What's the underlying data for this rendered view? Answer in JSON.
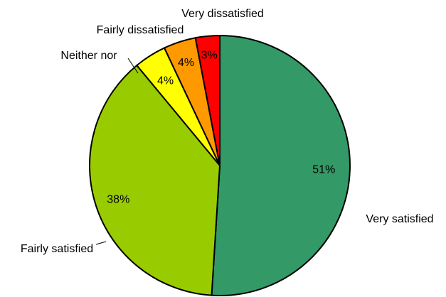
{
  "chart_data": {
    "type": "pie",
    "title": "",
    "slices": [
      {
        "label": "Very satisfied",
        "value": 51,
        "value_label": "51%",
        "color": "#339966"
      },
      {
        "label": "Fairly satisfied",
        "value": 38,
        "value_label": "38%",
        "color": "#99CC00"
      },
      {
        "label": "Neither nor",
        "value": 4,
        "value_label": "4%",
        "color": "#FFFF00"
      },
      {
        "label": "Fairly dissatisfied",
        "value": 4,
        "value_label": "4%",
        "color": "#FF9900"
      },
      {
        "label": "Very dissatisfied",
        "value": 3,
        "value_label": "3%",
        "color": "#FF0000"
      }
    ],
    "start": "12 o'clock",
    "direction": "clockwise",
    "legend": "none"
  }
}
